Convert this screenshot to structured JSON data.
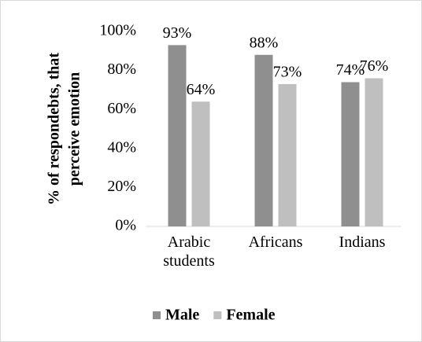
{
  "chart_data": {
    "type": "bar",
    "ylabel": [
      "% of respondebts, that",
      "perceive emotion"
    ],
    "categories": [
      "Arabic students",
      "Africans",
      "Indians"
    ],
    "series": [
      {
        "name": "Male",
        "color": "#8f8f8f",
        "values": [
          93,
          88,
          74
        ],
        "value_labels": [
          "93%",
          "88%",
          "74%"
        ]
      },
      {
        "name": "Female",
        "color": "#bfbfbf",
        "values": [
          64,
          73,
          76
        ],
        "value_labels": [
          "64%",
          "73%",
          "76%"
        ]
      }
    ],
    "ylim": [
      0,
      100
    ],
    "yticks": [
      {
        "value": 0,
        "label": "0%"
      },
      {
        "value": 20,
        "label": "20%"
      },
      {
        "value": 40,
        "label": "40%"
      },
      {
        "value": 60,
        "label": "60%"
      },
      {
        "value": 80,
        "label": "80%"
      },
      {
        "value": 100,
        "label": "100%"
      }
    ],
    "legend": "bottom",
    "grid": false
  }
}
